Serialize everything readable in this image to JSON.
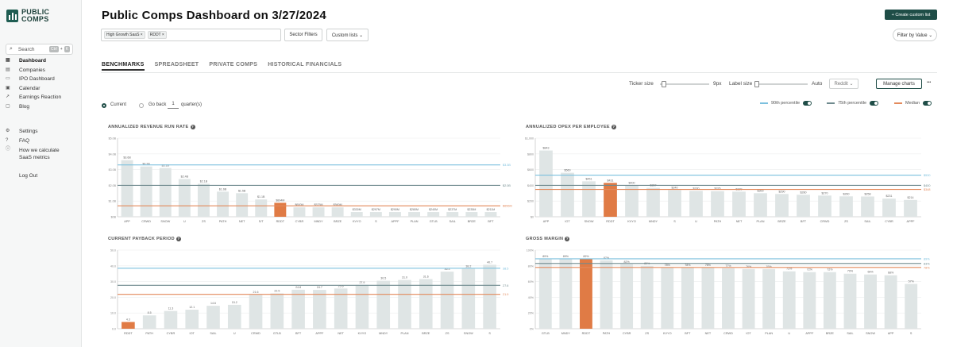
{
  "sidebar": {
    "logo": {
      "line1": "PUBLIC",
      "line2": "COMPS"
    },
    "search": {
      "label": "Search",
      "kbd1": "Ctrl",
      "kbd_sep": "+",
      "kbd2": "K"
    },
    "items": [
      {
        "label": "Dashboard",
        "icon": "grid-icon",
        "active": true
      },
      {
        "label": "Companies",
        "icon": "building-icon"
      },
      {
        "label": "IPO Dashboard",
        "icon": "ipo-icon"
      },
      {
        "label": "Calendar",
        "icon": "calendar-icon"
      },
      {
        "label": "Earnings Reaction",
        "icon": "trend-icon"
      },
      {
        "label": "Blog",
        "icon": "book-icon"
      }
    ],
    "bottom_items": [
      {
        "label": "Settings",
        "icon": "gear-icon"
      },
      {
        "label": "FAQ",
        "icon": "question-icon"
      },
      {
        "label": "How we calculate SaaS metrics",
        "icon": "info-icon"
      }
    ],
    "logout": "Log Out"
  },
  "header": {
    "title": "Public Comps Dashboard on 3/27/2024",
    "create_button": "+ Create custom list"
  },
  "filters": {
    "chips": [
      "High Growth SaaS ×",
      "RDDT ×"
    ],
    "sector_filters": "Sector Filters",
    "custom_lists": "Custom lists ⌄",
    "filter_by_value": "Filter by Value ⌄"
  },
  "tabs": [
    "BENCHMARKS",
    "SPREADSHEET",
    "PRIVATE COMPS",
    "HISTORICAL FINANCIALS"
  ],
  "controls": {
    "ticker_size_label": "Ticker size",
    "ticker_size_value": "9px",
    "label_size_label": "Label size",
    "label_size_value": "Auto",
    "font_select": "Reddit ⌄",
    "manage_charts": "Manage charts",
    "more": "•••"
  },
  "period": {
    "current": "Current",
    "go_back": "Go back",
    "quarters_value": "1",
    "quarters_suffix": "quarter(s)"
  },
  "legend": [
    {
      "label": "90th percentile",
      "color": "#7cc0de"
    },
    {
      "label": "75th percentile",
      "color": "#6f8a8e"
    },
    {
      "label": "Median",
      "color": "#e38a5c"
    }
  ],
  "colors": {
    "bar": "#dfe5e5",
    "highlight": "#e07b45",
    "p90": "#7cc0de",
    "p75": "#6f8a8e",
    "median": "#e38a5c"
  },
  "chart_data": [
    {
      "id": "arr",
      "type": "bar",
      "title": "ANNUALIZED REVENUE RUN RATE",
      "categories": [
        "APP",
        "CRWD",
        "SNOW",
        "U",
        "ZS",
        "PATH",
        "NET",
        "S/T",
        "RDDT",
        "CYBR",
        "MNDY",
        "BRZE",
        "KVYO",
        "S",
        "APPF",
        "PLAN",
        "GTLB",
        "SAIL",
        "BRZE",
        "BFT"
      ],
      "values": [
        3.6,
        3.2,
        3.1,
        2.4,
        2.1,
        1.6,
        1.5,
        1.1,
        0.89,
        0.6,
        0.6,
        0.6,
        0.3,
        0.3,
        0.3,
        0.3,
        0.3,
        0.3,
        0.3,
        0.3
      ],
      "labels": [
        "$3.6B",
        "$3.2B",
        "$3.1B",
        "$2.4B",
        "$2.1B",
        "$1.6B",
        "$1.5B",
        "$1.1B",
        "$894M",
        "$600M",
        "$575M",
        "$560M",
        "$330M",
        "$297M",
        "$290M",
        "$280M",
        "$240M",
        "$237M",
        "$235M",
        "$211M"
      ],
      "highlight": "RDDT",
      "yticks": [
        "$0B",
        "$1.0B",
        "$2.0B",
        "$3.0B",
        "$4.0B",
        "$5.0B"
      ],
      "ylim": [
        0,
        5
      ],
      "refs": {
        "p90": 3.3,
        "p75": 2.0,
        "median": 0.7
      },
      "ref_labels": [
        "$3.3B",
        "$2.0B",
        "$656M"
      ]
    },
    {
      "id": "opex",
      "type": "bar",
      "title": "ANNUALIZED OPEX PER EMPLOYEE",
      "categories": [
        "APP",
        "IOT",
        "SNOW",
        "RDDT",
        "KVYO",
        "MNDY",
        "S",
        "U",
        "PATH",
        "NET",
        "PLAN",
        "BRZE",
        "BFT",
        "CRWD",
        "ZS",
        "SAIL",
        "CYBR",
        "APPF"
      ],
      "values": [
        843,
        560,
        451,
        431,
        400,
        367,
        340,
        330,
        326,
        320,
        300,
        290,
        280,
        270,
        260,
        258,
        231,
        214
      ],
      "labels": [
        "$843",
        "$560",
        "$451",
        "$431",
        "$400",
        "$367",
        "$340",
        "$330",
        "$326",
        "$320",
        "$300",
        "$290",
        "$280",
        "$270",
        "$260",
        "$258",
        "$231",
        "$214"
      ],
      "highlight": "RDDT",
      "yticks": [
        "$0",
        "$200",
        "$400",
        "$600",
        "$800",
        "$1,000"
      ],
      "ylim": [
        0,
        1000
      ],
      "refs": {
        "p90": 530,
        "p75": 400,
        "median": 348
      },
      "ref_labels": [
        "$530",
        "$400",
        "$348"
      ]
    },
    {
      "id": "payback",
      "type": "bar",
      "title": "CURRENT PAYBACK PERIOD",
      "categories": [
        "RDDT",
        "PATH",
        "CYBR",
        "IOT",
        "SAIL",
        "U",
        "CRWD",
        "GTLB",
        "BFT",
        "APPF",
        "NET",
        "KVYO",
        "MNDY",
        "PLAN",
        "BRZE",
        "ZS",
        "SNOW",
        "S"
      ],
      "values": [
        4.3,
        8.5,
        11.3,
        12.1,
        14.6,
        15.2,
        21.6,
        22.5,
        24.8,
        24.7,
        25.6,
        27.9,
        30.5,
        31.0,
        31.6,
        36.3,
        38.2,
        40.7
      ],
      "labels": [
        "4.3",
        "8.5",
        "11.3",
        "12.1",
        "14.6",
        "15.2",
        "21.6",
        "22.5",
        "24.8",
        "24.7",
        "25.6",
        "27.9",
        "30.5",
        "31.0",
        "31.6",
        "36.3",
        "38.2",
        "40.7"
      ],
      "highlight": "RDDT",
      "yticks": [
        "0.0",
        "10.0",
        "20.0",
        "30.0",
        "40.0",
        "50.0"
      ],
      "ylim": [
        0,
        50
      ],
      "refs": {
        "p90": 38.5,
        "p75": 27.6,
        "median": 21.9
      },
      "ref_labels": [
        "38.5",
        "27.6",
        "21.9"
      ]
    },
    {
      "id": "gm",
      "type": "bar",
      "title": "GROSS MARGIN",
      "categories": [
        "GTLB",
        "MNDY",
        "RDDT",
        "PATH",
        "CYBR",
        "ZS",
        "KVYO",
        "BFT",
        "NET",
        "CRWD",
        "IOT",
        "PLAN",
        "U",
        "APPF",
        "BRZE",
        "SAIL",
        "SNOW",
        "APP",
        "S"
      ],
      "values": [
        89,
        89,
        89,
        87,
        82,
        80,
        78,
        78,
        78,
        77,
        76,
        76,
        73,
        72,
        72,
        70,
        69,
        68,
        57
      ],
      "labels": [
        "89%",
        "89%",
        "89%",
        "87%",
        "82%",
        "80%",
        "78%",
        "78%",
        "78%",
        "77%",
        "76%",
        "76%",
        "73%",
        "72%",
        "72%",
        "70%",
        "69%",
        "68%",
        "57%"
      ],
      "highlight": "RDDT",
      "yticks": [
        "0%",
        "20%",
        "40%",
        "60%",
        "80%",
        "100%"
      ],
      "ylim": [
        0,
        100
      ],
      "refs": {
        "p90": 89,
        "p75": 83,
        "median": 78
      },
      "ref_labels": [
        "89%",
        "83%",
        "78%"
      ]
    }
  ]
}
